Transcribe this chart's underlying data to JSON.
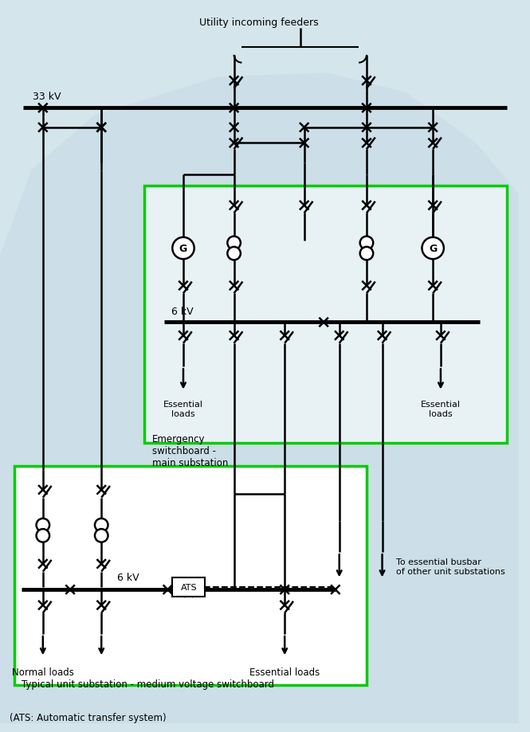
{
  "bg_color": "#d5e5ec",
  "line_color": "#000000",
  "green_color": "#00cc00",
  "title": "Utility incoming feeders",
  "label_33kv": "33 kV",
  "label_6kv_top": "6 kV",
  "label_6kv_bot": "6 kV",
  "label_emergency": "Emergency\nswitchboard -\nmain substation",
  "label_ess_tl": "Essential\nloads",
  "label_ess_tr": "Essential\nloads",
  "label_norm": "Normal loads",
  "label_ess_b": "Essential loads",
  "label_unit": "Typical unit substation - medium voltage switchboard",
  "label_ats_note": "(ATS: Automatic transfer system)",
  "label_to_ess": "To essential busbar\nof other unit substations"
}
